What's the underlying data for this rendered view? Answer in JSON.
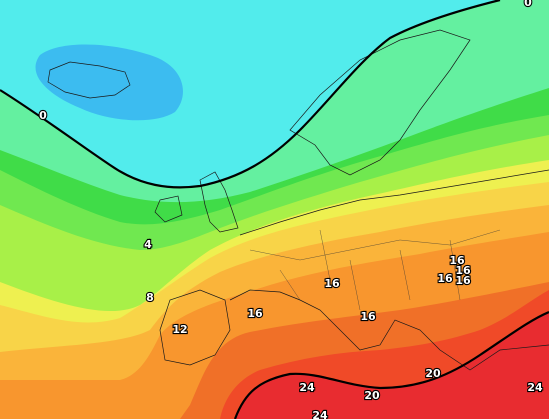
{
  "contour_labels": [
    "0",
    "0",
    "4",
    "8",
    "12",
    "16",
    "16",
    "16",
    "16",
    "16",
    "16",
    "16",
    "20",
    "20",
    "24",
    "24",
    "24"
  ]
}
